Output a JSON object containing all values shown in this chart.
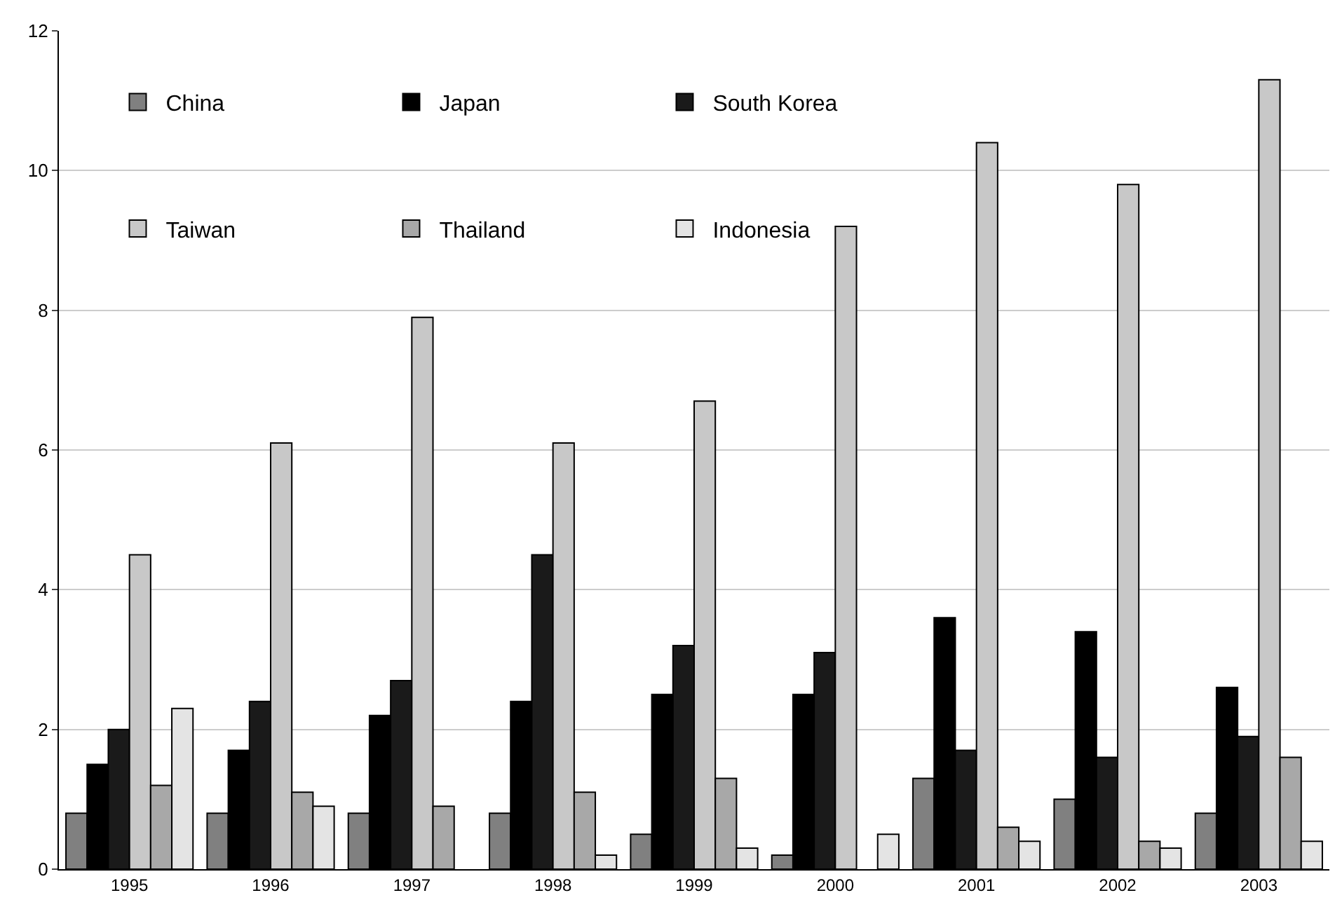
{
  "chart_data": {
    "type": "bar",
    "categories": [
      "1995",
      "1996",
      "1997",
      "1998",
      "1999",
      "2000",
      "2001",
      "2002",
      "2003"
    ],
    "series": [
      {
        "name": "China",
        "color": "#808080",
        "values": [
          0.8,
          0.8,
          0.8,
          0.8,
          0.5,
          0.2,
          1.3,
          1.0,
          0.8
        ]
      },
      {
        "name": "Japan",
        "color": "#000000",
        "values": [
          1.5,
          1.7,
          2.2,
          2.4,
          2.5,
          2.5,
          3.6,
          3.4,
          2.6
        ]
      },
      {
        "name": "South Korea",
        "color": "#1a1a1a",
        "values": [
          2.0,
          2.4,
          2.7,
          4.5,
          3.2,
          3.1,
          1.7,
          1.6,
          1.9
        ]
      },
      {
        "name": "Taiwan",
        "color": "#c8c8c8",
        "values": [
          4.5,
          6.1,
          7.9,
          6.1,
          6.7,
          9.2,
          10.4,
          9.8,
          11.3
        ]
      },
      {
        "name": "Thailand",
        "color": "#a8a8a8",
        "values": [
          1.2,
          1.1,
          0.9,
          1.1,
          1.3,
          null,
          0.6,
          0.4,
          1.6
        ]
      },
      {
        "name": "Indonesia",
        "color": "#e4e4e4",
        "values": [
          2.3,
          0.9,
          null,
          0.2,
          0.3,
          0.5,
          0.4,
          0.3,
          0.4
        ]
      }
    ],
    "ylim": [
      0,
      12
    ],
    "yticks": [
      0,
      2,
      4,
      6,
      8,
      10,
      12
    ],
    "grid": "y",
    "legend": "top left"
  }
}
